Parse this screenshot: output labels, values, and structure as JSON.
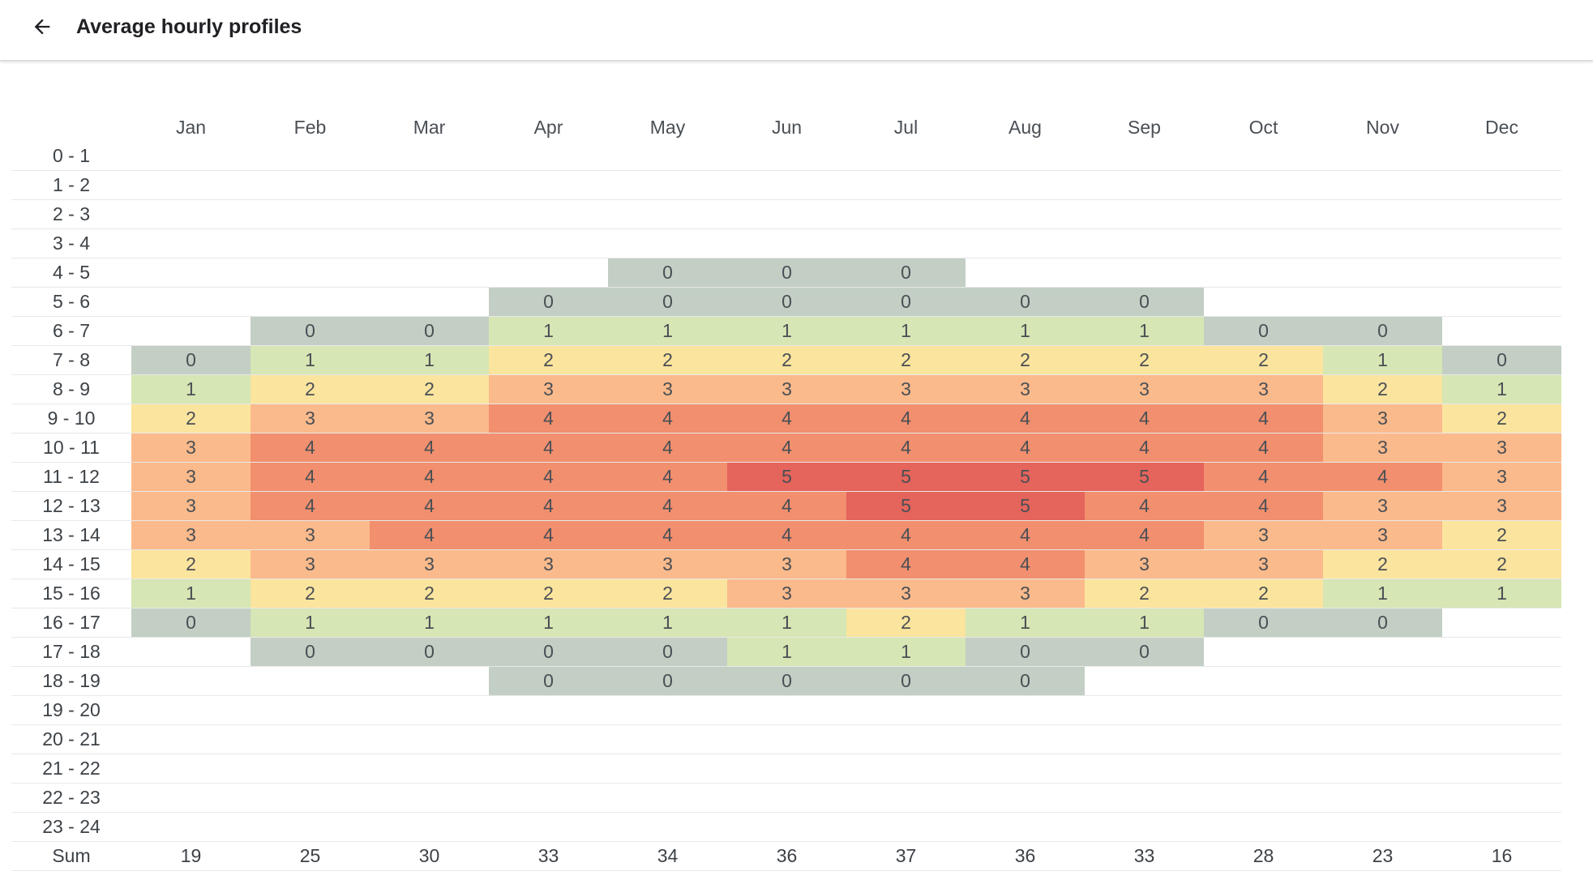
{
  "header": {
    "title": "Average hourly profiles",
    "back_icon": "arrow-back-icon"
  },
  "colors": {
    "0": "#c3cfc4",
    "1": "#d6e6b4",
    "2": "#fbe49e",
    "3": "#fbba8b",
    "4": "#f18f6e",
    "5": "#e5645b",
    "empty": "#ffffff"
  },
  "chart_data": {
    "type": "heatmap",
    "x": [
      "Jan",
      "Feb",
      "Mar",
      "Apr",
      "May",
      "Jun",
      "Jul",
      "Aug",
      "Sep",
      "Oct",
      "Nov",
      "Dec"
    ],
    "y": [
      "0 - 1",
      "1 - 2",
      "2 - 3",
      "3 - 4",
      "4 - 5",
      "5 - 6",
      "6 - 7",
      "7 - 8",
      "8 - 9",
      "9 - 10",
      "10 - 11",
      "11 - 12",
      "12 - 13",
      "13 - 14",
      "14 - 15",
      "15 - 16",
      "16 - 17",
      "17 - 18",
      "18 - 19",
      "19 - 20",
      "20 - 21",
      "21 - 22",
      "22 - 23",
      "23 - 24"
    ],
    "values": [
      [
        null,
        null,
        null,
        null,
        null,
        null,
        null,
        null,
        null,
        null,
        null,
        null
      ],
      [
        null,
        null,
        null,
        null,
        null,
        null,
        null,
        null,
        null,
        null,
        null,
        null
      ],
      [
        null,
        null,
        null,
        null,
        null,
        null,
        null,
        null,
        null,
        null,
        null,
        null
      ],
      [
        null,
        null,
        null,
        null,
        null,
        null,
        null,
        null,
        null,
        null,
        null,
        null
      ],
      [
        null,
        null,
        null,
        null,
        0,
        0,
        0,
        null,
        null,
        null,
        null,
        null
      ],
      [
        null,
        null,
        null,
        0,
        0,
        0,
        0,
        0,
        0,
        null,
        null,
        null
      ],
      [
        null,
        0,
        0,
        1,
        1,
        1,
        1,
        1,
        1,
        0,
        0,
        null
      ],
      [
        0,
        1,
        1,
        2,
        2,
        2,
        2,
        2,
        2,
        2,
        1,
        0
      ],
      [
        1,
        2,
        2,
        3,
        3,
        3,
        3,
        3,
        3,
        3,
        2,
        1
      ],
      [
        2,
        3,
        3,
        4,
        4,
        4,
        4,
        4,
        4,
        4,
        3,
        2
      ],
      [
        3,
        4,
        4,
        4,
        4,
        4,
        4,
        4,
        4,
        4,
        3,
        3
      ],
      [
        3,
        4,
        4,
        4,
        4,
        5,
        5,
        5,
        5,
        4,
        4,
        3
      ],
      [
        3,
        4,
        4,
        4,
        4,
        4,
        5,
        5,
        4,
        4,
        3,
        3
      ],
      [
        3,
        3,
        4,
        4,
        4,
        4,
        4,
        4,
        4,
        3,
        3,
        2
      ],
      [
        2,
        3,
        3,
        3,
        3,
        3,
        4,
        4,
        3,
        3,
        2,
        2
      ],
      [
        1,
        2,
        2,
        2,
        2,
        3,
        3,
        3,
        2,
        2,
        1,
        1
      ],
      [
        0,
        1,
        1,
        1,
        1,
        1,
        2,
        1,
        1,
        0,
        0,
        null
      ],
      [
        null,
        0,
        0,
        0,
        0,
        1,
        1,
        0,
        0,
        null,
        null,
        null
      ],
      [
        null,
        null,
        null,
        0,
        0,
        0,
        0,
        0,
        null,
        null,
        null,
        null
      ],
      [
        null,
        null,
        null,
        null,
        null,
        null,
        null,
        null,
        null,
        null,
        null,
        null
      ],
      [
        null,
        null,
        null,
        null,
        null,
        null,
        null,
        null,
        null,
        null,
        null,
        null
      ],
      [
        null,
        null,
        null,
        null,
        null,
        null,
        null,
        null,
        null,
        null,
        null,
        null
      ],
      [
        null,
        null,
        null,
        null,
        null,
        null,
        null,
        null,
        null,
        null,
        null,
        null
      ],
      [
        null,
        null,
        null,
        null,
        null,
        null,
        null,
        null,
        null,
        null,
        null,
        null
      ]
    ],
    "sum_label": "Sum",
    "sums": [
      19,
      25,
      30,
      33,
      34,
      36,
      37,
      36,
      33,
      28,
      23,
      16
    ]
  }
}
